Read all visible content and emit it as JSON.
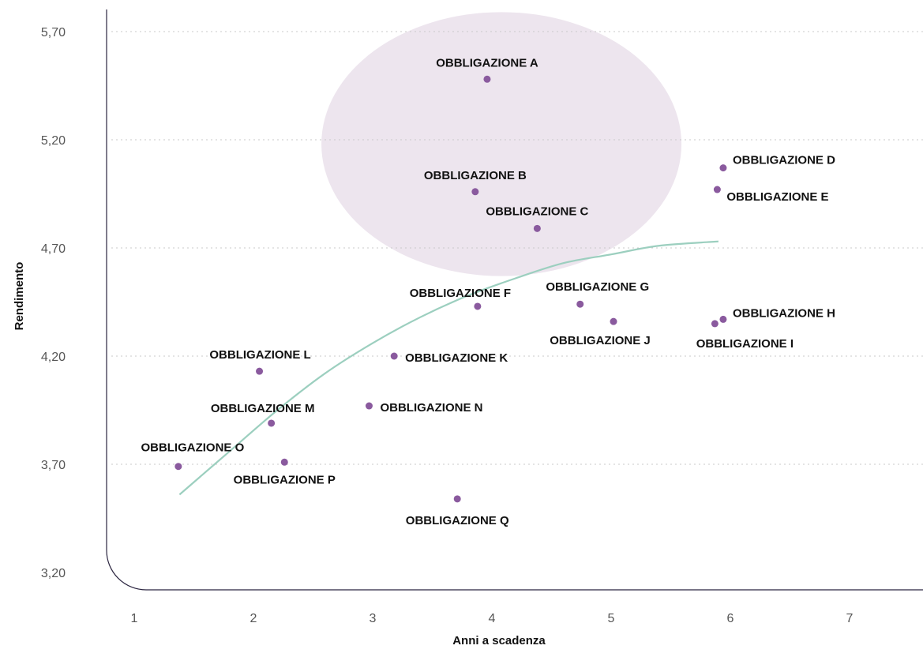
{
  "chart_data": {
    "type": "scatter",
    "xlabel": "Anni a scadenza",
    "ylabel": "Rendimento",
    "xlim": [
      0.95,
      7.6
    ],
    "ylim": [
      3.2,
      5.95
    ],
    "x_ticks": [
      {
        "value": 1,
        "label": "1"
      },
      {
        "value": 2,
        "label": "2"
      },
      {
        "value": 3,
        "label": "3"
      },
      {
        "value": 4,
        "label": "4"
      },
      {
        "value": 5,
        "label": "5"
      },
      {
        "value": 6,
        "label": "6"
      },
      {
        "value": 7,
        "label": "7"
      }
    ],
    "y_ticks": [
      {
        "value": 3.2,
        "label": "3,20"
      },
      {
        "value": 3.7,
        "label": "3,70"
      },
      {
        "value": 4.2,
        "label": "4,20"
      },
      {
        "value": 4.7,
        "label": "4,70"
      },
      {
        "value": 5.2,
        "label": "5,20"
      },
      {
        "value": 5.7,
        "label": "5,70"
      }
    ],
    "grid": "horizontal dotted",
    "points": [
      {
        "label": "OBBLIGAZIONE A",
        "x": 3.96,
        "y": 5.48
      },
      {
        "label": "OBBLIGAZIONE B",
        "x": 3.86,
        "y": 4.96
      },
      {
        "label": "OBBLIGAZIONE C",
        "x": 4.38,
        "y": 4.79
      },
      {
        "label": "OBBLIGAZIONE D",
        "x": 5.94,
        "y": 5.07
      },
      {
        "label": "OBBLIGAZIONE E",
        "x": 5.89,
        "y": 4.97
      },
      {
        "label": "OBBLIGAZIONE F",
        "x": 3.88,
        "y": 4.43
      },
      {
        "label": "OBBLIGAZIONE G",
        "x": 4.74,
        "y": 4.44
      },
      {
        "label": "OBBLIGAZIONE H",
        "x": 5.94,
        "y": 4.37
      },
      {
        "label": "OBBLIGAZIONE I",
        "x": 5.87,
        "y": 4.35
      },
      {
        "label": "OBBLIGAZIONE J",
        "x": 5.02,
        "y": 4.36
      },
      {
        "label": "OBBLIGAZIONE K",
        "x": 3.18,
        "y": 4.2
      },
      {
        "label": "OBBLIGAZIONE L",
        "x": 2.05,
        "y": 4.13
      },
      {
        "label": "OBBLIGAZIONE M",
        "x": 2.15,
        "y": 3.89
      },
      {
        "label": "OBBLIGAZIONE N",
        "x": 2.97,
        "y": 3.97
      },
      {
        "label": "OBBLIGAZIONE O",
        "x": 1.37,
        "y": 3.69
      },
      {
        "label": "OBBLIGAZIONE P",
        "x": 2.26,
        "y": 3.71
      },
      {
        "label": "OBBLIGAZIONE Q",
        "x": 3.71,
        "y": 3.54
      }
    ],
    "trend_curve": {
      "type": "line",
      "points": [
        {
          "x": 1.38,
          "y": 3.56
        },
        {
          "x": 1.8,
          "y": 3.76
        },
        {
          "x": 2.2,
          "y": 3.95
        },
        {
          "x": 2.6,
          "y": 4.12
        },
        {
          "x": 3.0,
          "y": 4.26
        },
        {
          "x": 3.4,
          "y": 4.38
        },
        {
          "x": 3.8,
          "y": 4.48
        },
        {
          "x": 4.2,
          "y": 4.56
        },
        {
          "x": 4.6,
          "y": 4.63
        },
        {
          "x": 5.0,
          "y": 4.67
        },
        {
          "x": 5.4,
          "y": 4.71
        },
        {
          "x": 5.9,
          "y": 4.73
        }
      ]
    },
    "highlight_ellipse": {
      "center_x": 4.08,
      "center_y": 5.18,
      "radius_x": 1.51,
      "radius_y": 0.61
    },
    "colors": {
      "point": "#8a5a9e",
      "trend": "#9ccfbf",
      "highlight": "#ede5ee",
      "grid": "#c9c9c9",
      "axis": "#2b2540"
    }
  }
}
